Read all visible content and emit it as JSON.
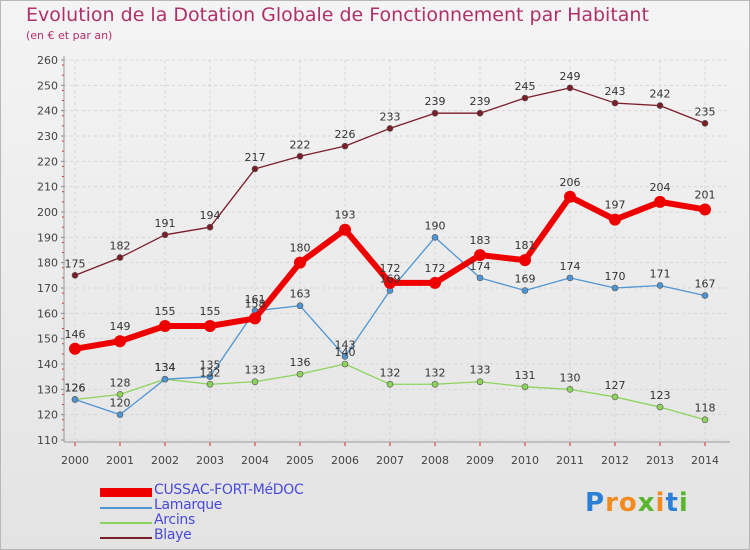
{
  "title": "Evolution de la Dotation Globale de Fonctionnement par Habitant",
  "subtitle": "(en € et par an)",
  "logo": {
    "letters": [
      "P",
      "r",
      "o",
      "x",
      "i",
      "t",
      "i"
    ],
    "colors": [
      "#2b7fd6",
      "#f28a1e",
      "#f28a1e",
      "#58b62d",
      "#f28a1e",
      "#2b7fd6",
      "#58b62d"
    ]
  },
  "chart_data": {
    "type": "line",
    "title": "Evolution de la Dotation Globale de Fonctionnement par Habitant",
    "subtitle": "(en € et par an)",
    "xlabel": "",
    "ylabel": "",
    "x": [
      "2000",
      "2001",
      "2002",
      "2003",
      "2004",
      "2005",
      "2006",
      "2007",
      "2008",
      "2009",
      "2010",
      "2011",
      "2012",
      "2013",
      "2014"
    ],
    "ylim": [
      110,
      260
    ],
    "yticks": [
      "110",
      "120",
      "130",
      "140",
      "150",
      "160",
      "170",
      "180",
      "190",
      "200",
      "210",
      "220",
      "230",
      "240",
      "250",
      "260"
    ],
    "grid": true,
    "legend": "bottom-left",
    "series": [
      {
        "name": "Blaye",
        "color": "#7a1e2a",
        "values": [
          175,
          182,
          191,
          194,
          217,
          222,
          226,
          233,
          239,
          239,
          245,
          249,
          243,
          242,
          235
        ],
        "labels": [
          "175",
          "182",
          "191",
          "194",
          "217",
          "222",
          "226",
          "233",
          "239",
          "239",
          "245",
          "249",
          "243",
          "242",
          "235"
        ]
      },
      {
        "name": "Arcins",
        "color": "#8ed35c",
        "values": [
          126,
          128,
          134,
          132,
          133,
          136,
          140,
          132,
          132,
          133,
          131,
          130,
          127,
          123,
          118
        ],
        "labels": [
          "126",
          "128",
          "134",
          "132",
          "133",
          "136",
          "140",
          "132",
          "132",
          "133",
          "131",
          "130",
          "127",
          "123",
          "118"
        ]
      },
      {
        "name": "Lamarque",
        "color": "#4f95d3",
        "values": [
          126,
          120,
          134,
          135,
          161,
          163,
          143,
          169,
          190,
          174,
          169,
          174,
          170,
          171,
          167
        ],
        "labels": [
          "126",
          "120",
          "134",
          "135",
          "161",
          "163",
          "143",
          "169",
          "190",
          "174",
          "169",
          "174",
          "170",
          "171",
          "167"
        ]
      },
      {
        "name": "CUSSAC-FORT-MéDOC",
        "color": "#ee0000",
        "values": [
          146,
          149,
          155,
          155,
          158,
          180,
          193,
          172,
          172,
          183,
          181,
          206,
          197,
          204,
          201
        ],
        "labels": [
          "146",
          "149",
          "155",
          "155",
          "158",
          "180",
          "193",
          "172",
          "172",
          "183",
          "181",
          "206",
          "197",
          "204",
          "201"
        ]
      }
    ]
  }
}
